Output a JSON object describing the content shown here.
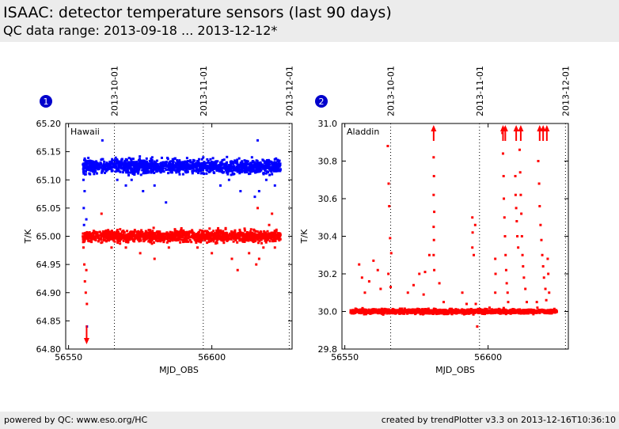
{
  "header": {
    "title": "ISAAC: detector temperature sensors (last 90 days)",
    "subtitle": "QC data range: 2013-09-18 ... 2013-12-12*"
  },
  "footer": {
    "left": "powered by QC: www.eso.org/HC",
    "right": "created by trendPlotter v3.3 on 2013-12-16T10:36:10"
  },
  "colors": {
    "blue": "#0000ff",
    "red": "#ff0000",
    "header_bg": "#ececec",
    "badge": "#0000cc"
  },
  "chart_data": [
    {
      "type": "scatter",
      "badge": "1",
      "panel_label": "Hawaii",
      "xlabel": "MJD_OBS",
      "ylabel": "T/K",
      "xlim": [
        56549,
        56628
      ],
      "ylim": [
        64.8,
        65.2
      ],
      "xticks": [
        56550,
        56600
      ],
      "yticks": [
        64.8,
        64.85,
        64.9,
        64.95,
        65.0,
        65.05,
        65.1,
        65.15,
        65.2
      ],
      "ytick_labels": [
        "64.80",
        "64.85",
        "64.90",
        "64.95",
        "65.00",
        "65.05",
        "65.10",
        "65.15",
        "65.20"
      ],
      "date_marks": [
        {
          "label": "2013-10-01",
          "mjd": 56566
        },
        {
          "label": "2013-11-01",
          "mjd": 56597
        },
        {
          "label": "2013-12-01",
          "mjd": 56627
        }
      ],
      "series": [
        {
          "color": "blue",
          "band": {
            "xrange": [
              56555,
              56624
            ],
            "center": 65.124,
            "spread": 0.006
          },
          "points": [
            [
              56555.2,
              65.1
            ],
            [
              56555.3,
              65.05
            ],
            [
              56555.4,
              65.02
            ],
            [
              56555.6,
              65.08
            ],
            [
              56555.9,
              65.13
            ],
            [
              56556.0,
              65.11
            ],
            [
              56556.2,
              65.03
            ],
            [
              56556.4,
              64.84
            ],
            [
              56557.5,
              65.11
            ],
            [
              56561.8,
              65.17
            ],
            [
              56567.0,
              65.1
            ],
            [
              56570.0,
              65.09
            ],
            [
              56572.0,
              65.1
            ],
            [
              56576.0,
              65.08
            ],
            [
              56580.0,
              65.09
            ],
            [
              56584.0,
              65.06
            ],
            [
              56590.0,
              65.11
            ],
            [
              56597.0,
              65.14
            ],
            [
              56603.0,
              65.09
            ],
            [
              56606.0,
              65.1
            ],
            [
              56610.0,
              65.08
            ],
            [
              56614.0,
              65.14
            ],
            [
              56615.0,
              65.07
            ],
            [
              56616.0,
              65.17
            ],
            [
              56616.5,
              65.08
            ],
            [
              56619.0,
              65.1
            ],
            [
              56621.0,
              65.11
            ],
            [
              56622.0,
              65.09
            ]
          ]
        },
        {
          "color": "red",
          "band": {
            "xrange": [
              56555,
              56624
            ],
            "center": 65.0,
            "spread": 0.005
          },
          "points": [
            [
              56555.2,
              64.98
            ],
            [
              56555.5,
              64.95
            ],
            [
              56555.7,
              64.92
            ],
            [
              56556.0,
              64.9
            ],
            [
              56556.2,
              64.94
            ],
            [
              56556.4,
              64.88
            ],
            [
              56558.0,
              64.99
            ],
            [
              56561.5,
              65.04
            ],
            [
              56565.0,
              64.98
            ],
            [
              56570.0,
              64.98
            ],
            [
              56575.0,
              64.97
            ],
            [
              56580.0,
              64.96
            ],
            [
              56585.0,
              64.98
            ],
            [
              56590.0,
              64.99
            ],
            [
              56595.0,
              64.98
            ],
            [
              56600.0,
              64.97
            ],
            [
              56607.0,
              64.96
            ],
            [
              56609.0,
              64.94
            ],
            [
              56613.0,
              64.97
            ],
            [
              56615.5,
              64.95
            ],
            [
              56616.0,
              65.05
            ],
            [
              56616.5,
              64.96
            ],
            [
              56618.0,
              64.98
            ],
            [
              56620.0,
              65.02
            ],
            [
              56621.0,
              65.04
            ],
            [
              56622.0,
              64.98
            ]
          ],
          "offscale_below": [
            56556.3
          ]
        }
      ]
    },
    {
      "type": "scatter",
      "badge": "2",
      "panel_label": "Aladdin",
      "xlabel": "MJD_OBS",
      "ylabel": "T/K",
      "xlim": [
        56549,
        56628
      ],
      "ylim": [
        29.8,
        31.0
      ],
      "xticks": [
        56550,
        56600
      ],
      "yticks": [
        29.8,
        30.0,
        30.2,
        30.4,
        30.6,
        30.8,
        31.0
      ],
      "ytick_labels": [
        "29.8",
        "30.0",
        "30.2",
        "30.4",
        "30.6",
        "30.8",
        "31.0"
      ],
      "date_marks": [
        {
          "label": "2013-10-01",
          "mjd": 56566
        },
        {
          "label": "2013-11-01",
          "mjd": 56597
        },
        {
          "label": "2013-12-01",
          "mjd": 56627
        }
      ],
      "series": [
        {
          "color": "red",
          "band": {
            "xrange": [
              56552,
              56624
            ],
            "center": 30.0,
            "spread": 0.006
          },
          "points": [
            [
              56555.0,
              30.25
            ],
            [
              56556.0,
              30.18
            ],
            [
              56557.0,
              30.1
            ],
            [
              56558.5,
              30.16
            ],
            [
              56560.0,
              30.27
            ],
            [
              56561.5,
              30.22
            ],
            [
              56562.5,
              30.12
            ],
            [
              56565.0,
              30.88
            ],
            [
              56565.3,
              30.68
            ],
            [
              56565.5,
              30.56
            ],
            [
              56565.8,
              30.39
            ],
            [
              56566.2,
              30.31
            ],
            [
              56565.2,
              30.2
            ],
            [
              56566.0,
              30.13
            ],
            [
              56572.0,
              30.1
            ],
            [
              56574.0,
              30.14
            ],
            [
              56576.0,
              30.2
            ],
            [
              56577.5,
              30.09
            ],
            [
              56578.0,
              30.21
            ],
            [
              56579.5,
              30.3
            ],
            [
              56581.0,
              30.82
            ],
            [
              56581.1,
              30.72
            ],
            [
              56581.0,
              30.62
            ],
            [
              56581.2,
              30.53
            ],
            [
              56581.0,
              30.45
            ],
            [
              56581.1,
              30.38
            ],
            [
              56581.0,
              30.3
            ],
            [
              56581.2,
              30.22
            ],
            [
              56583.0,
              30.15
            ],
            [
              56584.5,
              30.05
            ],
            [
              56591.0,
              30.1
            ],
            [
              56592.5,
              30.04
            ],
            [
              56594.5,
              30.5
            ],
            [
              56594.6,
              30.42
            ],
            [
              56594.5,
              30.34
            ],
            [
              56595.0,
              30.3
            ],
            [
              56595.5,
              30.46
            ],
            [
              56595.7,
              30.04
            ],
            [
              56596.2,
              29.92
            ],
            [
              56600.5,
              30.02
            ],
            [
              56602.5,
              30.28
            ],
            [
              56602.6,
              30.2
            ],
            [
              56602.5,
              30.1
            ],
            [
              56605.0,
              30.95
            ],
            [
              56605.2,
              30.84
            ],
            [
              56605.4,
              30.72
            ],
            [
              56605.5,
              30.6
            ],
            [
              56605.7,
              30.5
            ],
            [
              56605.9,
              30.4
            ],
            [
              56606.1,
              30.3
            ],
            [
              56606.3,
              30.22
            ],
            [
              56606.5,
              30.15
            ],
            [
              56606.8,
              30.1
            ],
            [
              56607.0,
              30.05
            ],
            [
              56609.5,
              30.72
            ],
            [
              56609.6,
              30.62
            ],
            [
              56609.8,
              30.55
            ],
            [
              56610.0,
              30.48
            ],
            [
              56610.2,
              30.4
            ],
            [
              56610.5,
              30.34
            ],
            [
              56611.0,
              30.86
            ],
            [
              56611.2,
              30.74
            ],
            [
              56611.4,
              30.62
            ],
            [
              56611.6,
              30.52
            ],
            [
              56611.8,
              30.4
            ],
            [
              56612.0,
              30.3
            ],
            [
              56612.2,
              30.24
            ],
            [
              56612.5,
              30.18
            ],
            [
              56613.0,
              30.12
            ],
            [
              56613.5,
              30.05
            ],
            [
              56617.5,
              30.8
            ],
            [
              56617.8,
              30.68
            ],
            [
              56618.0,
              30.56
            ],
            [
              56618.3,
              30.46
            ],
            [
              56618.6,
              30.38
            ],
            [
              56618.9,
              30.3
            ],
            [
              56619.2,
              30.24
            ],
            [
              56619.5,
              30.18
            ],
            [
              56620.0,
              30.12
            ],
            [
              56620.3,
              30.06
            ],
            [
              56620.8,
              30.28
            ],
            [
              56621.0,
              30.2
            ],
            [
              56621.3,
              30.1
            ],
            [
              56617.0,
              30.05
            ],
            [
              56617.2,
              30.02
            ],
            [
              56621.5,
              29.99
            ]
          ],
          "offscale_above": [
            56581.0,
            56605.2,
            56606.0,
            56609.8,
            56611.4,
            56618.0,
            56619.2,
            56620.5
          ]
        }
      ]
    }
  ]
}
